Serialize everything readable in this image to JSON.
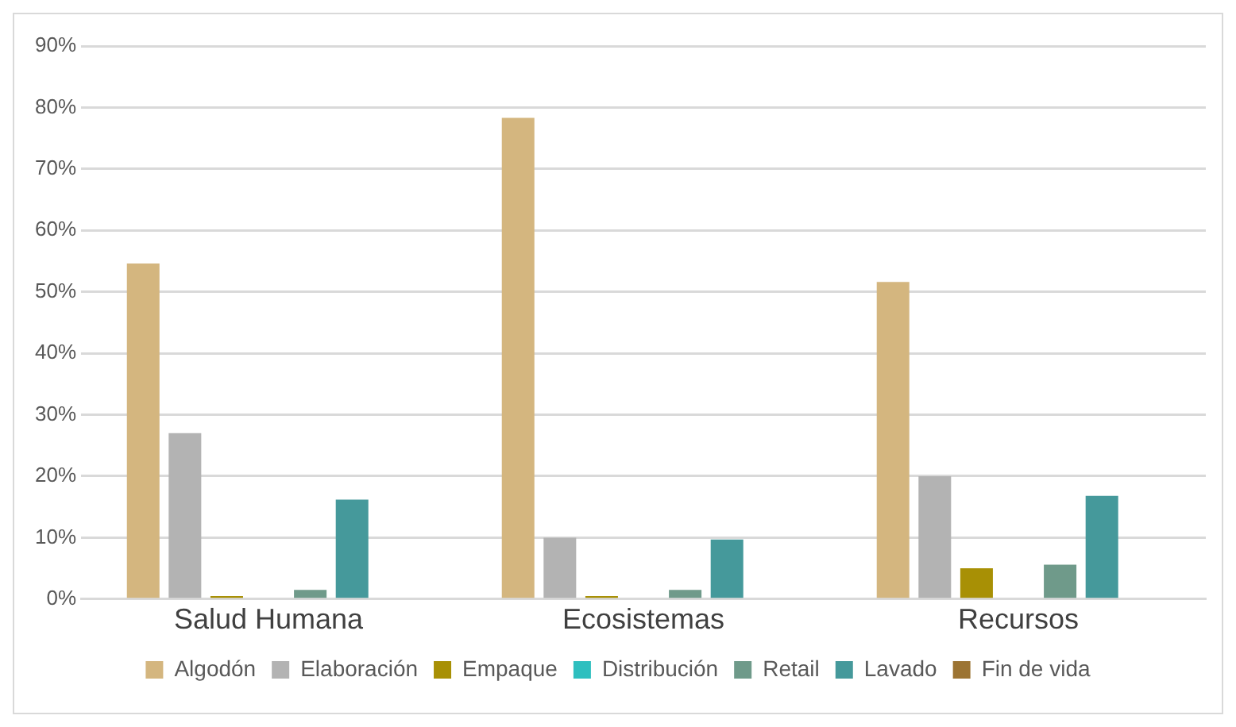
{
  "chart_data": {
    "type": "bar",
    "categories": [
      "Salud Humana",
      "Ecosistemas",
      "Recursos"
    ],
    "series": [
      {
        "name": "Algodón",
        "color": "#d4b67f",
        "values": [
          54.6,
          78.3,
          51.6
        ]
      },
      {
        "name": "Elaboración",
        "color": "#b3b3b3",
        "values": [
          27.0,
          10.0,
          20.0
        ]
      },
      {
        "name": "Empaque",
        "color": "#a89005",
        "values": [
          0.5,
          0.5,
          5.0
        ]
      },
      {
        "name": "Distribución",
        "color": "#2ebfbf",
        "values": [
          0,
          0,
          0
        ]
      },
      {
        "name": "Retail",
        "color": "#6f9a8a",
        "values": [
          1.5,
          1.5,
          5.6
        ]
      },
      {
        "name": "Lavado",
        "color": "#45999b",
        "values": [
          16.2,
          9.7,
          16.8
        ]
      },
      {
        "name": "Fin de vida",
        "color": "#9c7433",
        "values": [
          0,
          0,
          0
        ]
      }
    ],
    "ylim": [
      0,
      90
    ],
    "yticks": [
      {
        "value": 0,
        "label": "0%"
      },
      {
        "value": 10,
        "label": "10%"
      },
      {
        "value": 20,
        "label": "20%"
      },
      {
        "value": 30,
        "label": "30%"
      },
      {
        "value": 40,
        "label": "40%"
      },
      {
        "value": 50,
        "label": "50%"
      },
      {
        "value": 60,
        "label": "60%"
      },
      {
        "value": 70,
        "label": "70%"
      },
      {
        "value": 80,
        "label": "80%"
      },
      {
        "value": 90,
        "label": "90%"
      }
    ],
    "grid": "y",
    "legend": "bottom"
  }
}
